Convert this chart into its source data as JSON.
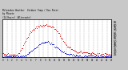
{
  "title_line1": "Milwaukee Weather  Outdoor Temp / Dew Point",
  "title_line2": "by Minute",
  "title_line3": "(24 Hours) (Alternate)",
  "bg_color": "#c8c8c8",
  "plot_bg": "#ffffff",
  "border_color": "#000000",
  "temp_color": "#dd0000",
  "dew_color": "#0000cc",
  "grid_color": "#888888",
  "ymin": 20,
  "ymax": 90,
  "yticks": [
    25,
    30,
    35,
    40,
    45,
    50,
    55,
    60,
    65,
    70,
    75,
    80,
    85
  ],
  "ytick_labels": [
    "25",
    "30",
    "35",
    "40",
    "45",
    "50",
    "55",
    "60",
    "65",
    "70",
    "75",
    "80",
    "85"
  ],
  "temp_data": [
    28,
    27,
    27,
    27,
    26,
    26,
    26,
    26,
    25,
    25,
    25,
    25,
    25,
    25,
    25,
    25,
    25,
    25,
    26,
    26,
    27,
    28,
    30,
    32,
    34,
    37,
    40,
    43,
    46,
    49,
    52,
    55,
    57,
    59,
    61,
    63,
    65,
    67,
    68,
    70,
    71,
    72,
    73,
    74,
    75,
    76,
    77,
    77,
    78,
    78,
    78,
    79,
    79,
    79,
    79,
    80,
    80,
    80,
    80,
    79,
    79,
    79,
    78,
    78,
    77,
    77,
    76,
    75,
    74,
    73,
    71,
    70,
    68,
    66,
    64,
    62,
    60,
    57,
    55,
    53,
    51,
    49,
    47,
    45,
    43,
    41,
    40,
    39,
    38,
    37,
    36,
    35,
    34,
    33,
    33,
    32,
    32,
    31,
    31,
    31,
    30,
    30,
    30,
    30,
    30,
    29,
    29,
    29,
    29,
    29,
    29,
    29,
    29,
    28,
    28,
    28,
    28,
    28,
    28,
    28,
    28,
    27,
    27,
    27,
    27,
    27,
    27,
    27,
    26,
    26,
    26,
    26,
    26,
    26,
    26,
    26,
    26,
    26,
    26,
    26,
    25,
    25,
    25,
    25
  ],
  "dew_data": [
    22,
    22,
    22,
    22,
    22,
    22,
    22,
    22,
    22,
    22,
    22,
    22,
    22,
    22,
    22,
    22,
    22,
    22,
    22,
    22,
    22,
    22,
    22,
    22,
    22,
    23,
    23,
    23,
    23,
    24,
    24,
    25,
    26,
    27,
    28,
    29,
    30,
    31,
    32,
    33,
    34,
    35,
    36,
    37,
    38,
    40,
    41,
    42,
    43,
    44,
    45,
    46,
    46,
    47,
    47,
    48,
    48,
    48,
    48,
    48,
    48,
    47,
    47,
    46,
    46,
    45,
    44,
    43,
    42,
    41,
    40,
    39,
    38,
    37,
    36,
    35,
    34,
    33,
    32,
    31,
    30,
    30,
    29,
    28,
    28,
    27,
    27,
    26,
    26,
    26,
    25,
    25,
    25,
    24,
    24,
    24,
    24,
    24,
    24,
    23,
    23,
    23,
    23,
    23,
    23,
    23,
    23,
    23,
    23,
    23,
    23,
    23,
    23,
    23,
    23,
    23,
    23,
    23,
    23,
    23,
    22,
    22,
    22,
    22,
    22,
    22,
    22,
    22,
    22,
    22,
    22,
    22,
    22,
    22,
    22,
    22,
    22,
    22,
    22,
    22,
    22,
    22,
    22,
    22
  ],
  "xtick_labels": [
    "0",
    "1",
    "2",
    "3",
    "4",
    "5",
    "6",
    "7",
    "8",
    "9",
    "10",
    "11",
    "12",
    "13",
    "14",
    "15",
    "16",
    "17",
    "18",
    "19",
    "20",
    "21",
    "22",
    "23"
  ],
  "n_points": 144,
  "n_gridlines": 24
}
